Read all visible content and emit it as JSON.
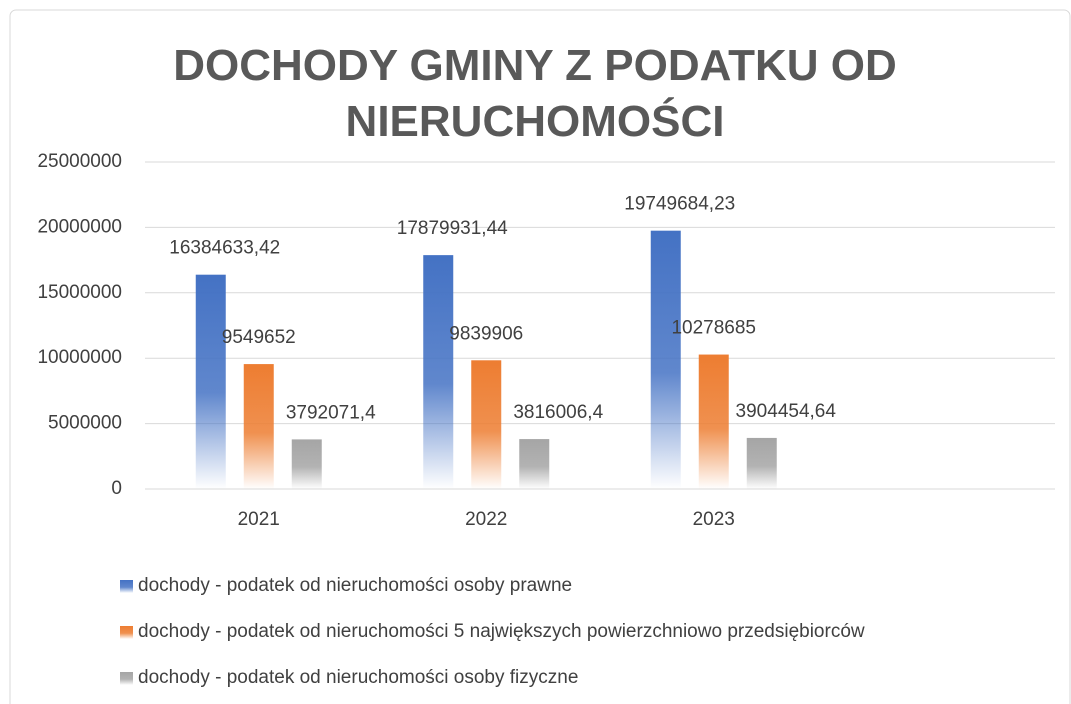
{
  "chart_data": {
    "type": "bar",
    "title": "DOCHODY GMINY Z PODATKU OD NIERUCHOMOŚCI",
    "categories": [
      "2021",
      "2022",
      "2023",
      null
    ],
    "series": [
      {
        "name": "dochody - podatek od nieruchomości osoby prawne",
        "color": "#4472c4",
        "values": [
          16384633.42,
          17879931.44,
          19749684.23,
          null
        ],
        "value_labels": [
          "16384633,42",
          "17879931,44",
          "19749684,23",
          null
        ]
      },
      {
        "name": "dochody - podatek od nieruchomości 5 największych powierzchniowo przedsiębiorców",
        "color": "#ed7d31",
        "values": [
          9549652,
          9839906,
          10278685,
          null
        ],
        "value_labels": [
          "9549652",
          "9839906",
          "10278685",
          null
        ]
      },
      {
        "name": "dochody - podatek od nieruchomości osoby fizyczne",
        "color": "#a5a5a5",
        "values": [
          3792071.4,
          3816006.4,
          3904454.64,
          null
        ],
        "value_labels": [
          "3792071,4",
          "3816006,4",
          "3904454,64",
          null
        ]
      }
    ],
    "ylim": [
      0,
      25000000
    ],
    "yticks": [
      0,
      5000000,
      10000000,
      15000000,
      20000000,
      25000000
    ],
    "grid": true,
    "legend": "bottom"
  }
}
